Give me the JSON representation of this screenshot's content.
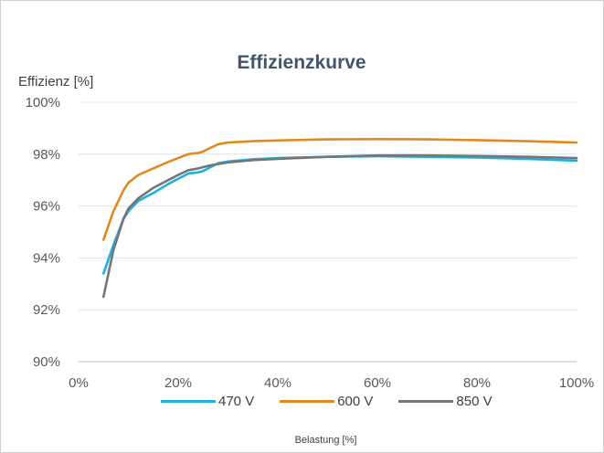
{
  "chart_data": {
    "type": "line",
    "title": "Effizienzkurve",
    "xlabel": "Belastung [%]",
    "ylabel": "Effizienz [%]",
    "xlim": [
      0,
      100
    ],
    "ylim": [
      90,
      100
    ],
    "x_ticks": [
      "0%",
      "20%",
      "40%",
      "60%",
      "80%",
      "100%"
    ],
    "y_ticks": [
      "90%",
      "92%",
      "94%",
      "96%",
      "98%",
      "100%"
    ],
    "grid": "horizontal",
    "legend_position": "bottom",
    "series": [
      {
        "name": "470 V",
        "color": "#1fb0e0",
        "x": [
          5,
          7,
          9,
          10,
          12,
          15,
          18,
          20,
          22,
          24,
          25,
          26,
          28,
          30,
          35,
          40,
          50,
          60,
          70,
          80,
          90,
          100
        ],
        "y": [
          93.4,
          94.5,
          95.5,
          95.8,
          96.2,
          96.5,
          96.85,
          97.05,
          97.25,
          97.3,
          97.35,
          97.45,
          97.65,
          97.72,
          97.8,
          97.85,
          97.9,
          97.92,
          97.9,
          97.87,
          97.82,
          97.75
        ]
      },
      {
        "name": "600 V",
        "color": "#e08a1e",
        "x": [
          5,
          7,
          9,
          10,
          12,
          15,
          18,
          20,
          22,
          24,
          25,
          26,
          28,
          30,
          35,
          40,
          50,
          60,
          70,
          80,
          90,
          100
        ],
        "y": [
          94.7,
          95.8,
          96.6,
          96.9,
          97.2,
          97.45,
          97.7,
          97.85,
          98.0,
          98.05,
          98.1,
          98.2,
          98.38,
          98.45,
          98.5,
          98.53,
          98.57,
          98.58,
          98.57,
          98.54,
          98.5,
          98.45
        ]
      },
      {
        "name": "850 V",
        "color": "#767676",
        "x": [
          5,
          7,
          9,
          10,
          12,
          15,
          18,
          20,
          22,
          24,
          25,
          26,
          28,
          30,
          35,
          40,
          50,
          60,
          70,
          80,
          90,
          100
        ],
        "y": [
          92.5,
          94.3,
          95.5,
          95.9,
          96.3,
          96.7,
          97.0,
          97.2,
          97.38,
          97.45,
          97.5,
          97.55,
          97.62,
          97.68,
          97.77,
          97.82,
          97.9,
          97.95,
          97.95,
          97.93,
          97.9,
          97.85
        ]
      }
    ]
  }
}
